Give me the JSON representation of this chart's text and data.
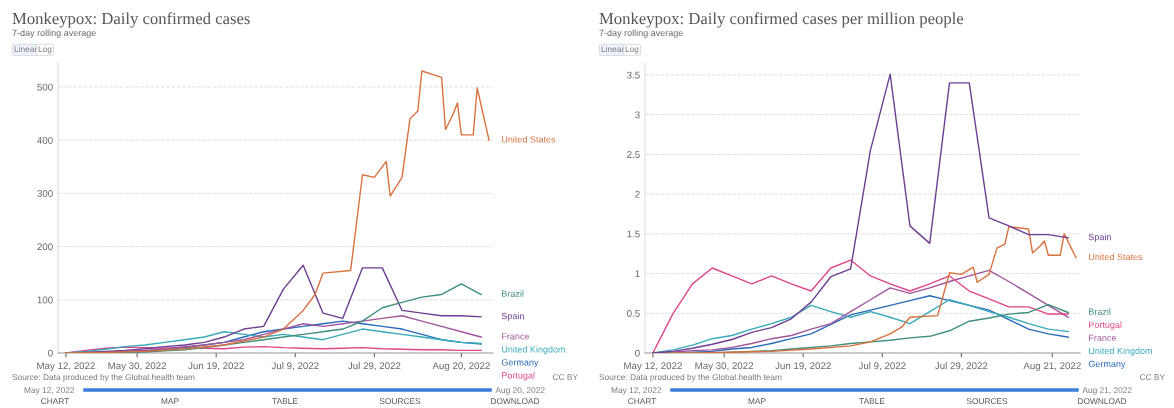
{
  "chart_data": [
    {
      "type": "line",
      "title": "Monkeypox: Daily confirmed cases",
      "subtitle": "7-day rolling average",
      "x": [
        "2022-05-12",
        "2022-05-17",
        "2022-05-22",
        "2022-05-27",
        "2022-06-01",
        "2022-06-06",
        "2022-06-11",
        "2022-06-16",
        "2022-06-21",
        "2022-06-26",
        "2022-07-01",
        "2022-07-06",
        "2022-07-11",
        "2022-07-16",
        "2022-07-21",
        "2022-07-26",
        "2022-07-31",
        "2022-08-05",
        "2022-08-10",
        "2022-08-15",
        "2022-08-20",
        "2022-08-25"
      ],
      "series": [
        {
          "name": "United States",
          "color": "#d9713f",
          "x": [
            "2022-05-12",
            "2022-05-22",
            "2022-06-01",
            "2022-06-11",
            "2022-06-21",
            "2022-07-01",
            "2022-07-06",
            "2022-07-11",
            "2022-07-14",
            "2022-07-16",
            "2022-07-23",
            "2022-07-26",
            "2022-07-29",
            "2022-08-01",
            "2022-08-02",
            "2022-08-05",
            "2022-08-07",
            "2022-08-09",
            "2022-08-10",
            "2022-08-15",
            "2022-08-16",
            "2022-08-18",
            "2022-08-19",
            "2022-08-20",
            "2022-08-23",
            "2022-08-24",
            "2022-08-27"
          ],
          "values": [
            0,
            1,
            3,
            8,
            15,
            30,
            45,
            80,
            110,
            150,
            155,
            335,
            330,
            360,
            295,
            330,
            440,
            455,
            530,
            518,
            420,
            450,
            470,
            410,
            410,
            498,
            400
          ]
        },
        {
          "name": "Brazil",
          "color": "#3f8f7f",
          "values": [
            0,
            0,
            0,
            1,
            2,
            4,
            6,
            10,
            15,
            20,
            25,
            30,
            35,
            40,
            45,
            60,
            85,
            95,
            105,
            110,
            130,
            110
          ]
        },
        {
          "name": "Spain",
          "color": "#6d3e91",
          "values": [
            0,
            1,
            3,
            5,
            8,
            12,
            15,
            20,
            30,
            45,
            50,
            120,
            165,
            75,
            65,
            160,
            160,
            80,
            75,
            70,
            70,
            68
          ]
        },
        {
          "name": "France",
          "color": "#a2559c",
          "values": [
            0,
            1,
            2,
            3,
            5,
            8,
            12,
            15,
            20,
            25,
            35,
            45,
            55,
            50,
            55,
            60,
            65,
            70,
            60,
            50,
            40,
            30
          ]
        },
        {
          "name": "United Kingdom",
          "color": "#38aaba",
          "values": [
            0,
            3,
            7,
            12,
            15,
            20,
            25,
            30,
            40,
            35,
            30,
            35,
            30,
            25,
            35,
            45,
            40,
            35,
            30,
            25,
            20,
            18
          ]
        },
        {
          "name": "Germany",
          "color": "#286bbb",
          "values": [
            0,
            0,
            1,
            2,
            4,
            6,
            10,
            15,
            20,
            30,
            40,
            45,
            50,
            55,
            60,
            55,
            50,
            45,
            35,
            25,
            20,
            17
          ]
        },
        {
          "name": "Portugal",
          "color": "#e0468a",
          "values": [
            0,
            5,
            9,
            11,
            10,
            9,
            10,
            9,
            8,
            11,
            12,
            10,
            9,
            8,
            9,
            10,
            8,
            7,
            6,
            6,
            5,
            5
          ]
        }
      ],
      "xlim": [
        "2022-05-10",
        "2022-08-28"
      ],
      "xticks": [
        {
          "value": "2022-05-12",
          "label": "May 12, 2022"
        },
        {
          "value": "2022-05-30",
          "label": "May 30, 2022"
        },
        {
          "value": "2022-06-19",
          "label": "Jun 19, 2022"
        },
        {
          "value": "2022-07-09",
          "label": "Jul 9, 2022"
        },
        {
          "value": "2022-07-29",
          "label": "Jul 29, 2022"
        },
        {
          "value": "2022-08-20",
          "label": "Aug 20, 2022"
        }
      ],
      "ylim": [
        0,
        545
      ],
      "yticks": [
        0,
        100,
        200,
        300,
        400,
        500
      ],
      "grid": "y",
      "legend": false,
      "annotations": [
        "Linear",
        "Log",
        "Source: Data produced by the Global.health team",
        "CC BY",
        "May 12, 2022",
        "Aug 20, 2022",
        "CHART",
        "MAP",
        "TABLE",
        "SOURCES",
        "DOWNLOAD"
      ]
    },
    {
      "type": "line",
      "title": "Monkeypox: Daily confirmed cases per million people",
      "subtitle": "7-day rolling average",
      "x": [
        "2022-05-12",
        "2022-05-17",
        "2022-05-22",
        "2022-05-27",
        "2022-06-01",
        "2022-06-06",
        "2022-06-11",
        "2022-06-16",
        "2022-06-21",
        "2022-06-26",
        "2022-07-01",
        "2022-07-06",
        "2022-07-11",
        "2022-07-16",
        "2022-07-21",
        "2022-07-26",
        "2022-07-31",
        "2022-08-05",
        "2022-08-10",
        "2022-08-15",
        "2022-08-20",
        "2022-08-25"
      ],
      "series": [
        {
          "name": "Spain",
          "color": "#6d3e91",
          "values": [
            0,
            0.02,
            0.06,
            0.11,
            0.17,
            0.26,
            0.32,
            0.43,
            0.64,
            0.96,
            1.06,
            2.55,
            3.51,
            1.6,
            1.38,
            3.4,
            3.4,
            1.7,
            1.6,
            1.49,
            1.49,
            1.45
          ]
        },
        {
          "name": "United States",
          "color": "#d9713f",
          "x": [
            "2022-05-12",
            "2022-05-22",
            "2022-06-01",
            "2022-06-11",
            "2022-06-21",
            "2022-07-01",
            "2022-07-06",
            "2022-07-11",
            "2022-07-14",
            "2022-07-16",
            "2022-07-23",
            "2022-07-26",
            "2022-07-29",
            "2022-08-01",
            "2022-08-02",
            "2022-08-05",
            "2022-08-07",
            "2022-08-09",
            "2022-08-10",
            "2022-08-15",
            "2022-08-16",
            "2022-08-18",
            "2022-08-19",
            "2022-08-20",
            "2022-08-23",
            "2022-08-24",
            "2022-08-27"
          ],
          "values": [
            0,
            0,
            0.01,
            0.02,
            0.05,
            0.09,
            0.14,
            0.24,
            0.33,
            0.45,
            0.47,
            1.01,
            0.99,
            1.08,
            0.89,
            0.99,
            1.32,
            1.37,
            1.59,
            1.56,
            1.26,
            1.35,
            1.41,
            1.23,
            1.23,
            1.5,
            1.2
          ]
        },
        {
          "name": "Brazil",
          "color": "#3f8f7f",
          "values": [
            0,
            0,
            0,
            0,
            0.01,
            0.02,
            0.03,
            0.05,
            0.07,
            0.09,
            0.12,
            0.14,
            0.16,
            0.19,
            0.21,
            0.28,
            0.4,
            0.44,
            0.49,
            0.51,
            0.61,
            0.51
          ]
        },
        {
          "name": "Portugal",
          "color": "#e0468a",
          "values": [
            0,
            0.49,
            0.87,
            1.07,
            0.97,
            0.87,
            0.97,
            0.87,
            0.78,
            1.07,
            1.17,
            0.97,
            0.87,
            0.78,
            0.87,
            0.97,
            0.78,
            0.68,
            0.58,
            0.58,
            0.49,
            0.49
          ]
        },
        {
          "name": "France",
          "color": "#a2559c",
          "values": [
            0,
            0.01,
            0.03,
            0.04,
            0.07,
            0.12,
            0.18,
            0.22,
            0.3,
            0.37,
            0.52,
            0.67,
            0.82,
            0.75,
            0.82,
            0.9,
            0.97,
            1.04,
            0.9,
            0.75,
            0.6,
            0.45
          ]
        },
        {
          "name": "United Kingdom",
          "color": "#38aaba",
          "values": [
            0,
            0.04,
            0.1,
            0.18,
            0.22,
            0.3,
            0.37,
            0.45,
            0.6,
            0.52,
            0.45,
            0.52,
            0.45,
            0.37,
            0.52,
            0.67,
            0.6,
            0.52,
            0.45,
            0.37,
            0.3,
            0.27
          ]
        },
        {
          "name": "Germany",
          "color": "#286bbb",
          "values": [
            0,
            0,
            0.01,
            0.02,
            0.05,
            0.07,
            0.12,
            0.18,
            0.24,
            0.36,
            0.48,
            0.54,
            0.6,
            0.66,
            0.72,
            0.66,
            0.6,
            0.54,
            0.42,
            0.3,
            0.24,
            0.2
          ]
        }
      ],
      "xlim": [
        "2022-05-10",
        "2022-08-28"
      ],
      "xticks": [
        {
          "value": "2022-05-12",
          "label": "May 12, 2022"
        },
        {
          "value": "2022-05-30",
          "label": "May 30, 2022"
        },
        {
          "value": "2022-06-19",
          "label": "Jun 19, 2022"
        },
        {
          "value": "2022-07-09",
          "label": "Jul 9, 2022"
        },
        {
          "value": "2022-07-29",
          "label": "Jul 29, 2022"
        },
        {
          "value": "2022-08-21",
          "label": "Aug 21, 2022"
        }
      ],
      "ylim": [
        0,
        3.65
      ],
      "yticks": [
        0,
        0.5,
        1,
        1.5,
        2,
        2.5,
        3,
        3.5
      ],
      "grid": "y",
      "legend": false,
      "annotations": [
        "Linear",
        "Log",
        "Source: Data produced by the Global.health team",
        "CC BY",
        "May 12, 2022",
        "Aug 21, 2022",
        "CHART",
        "MAP",
        "TABLE",
        "SOURCES",
        "DOWNLOAD"
      ]
    }
  ]
}
